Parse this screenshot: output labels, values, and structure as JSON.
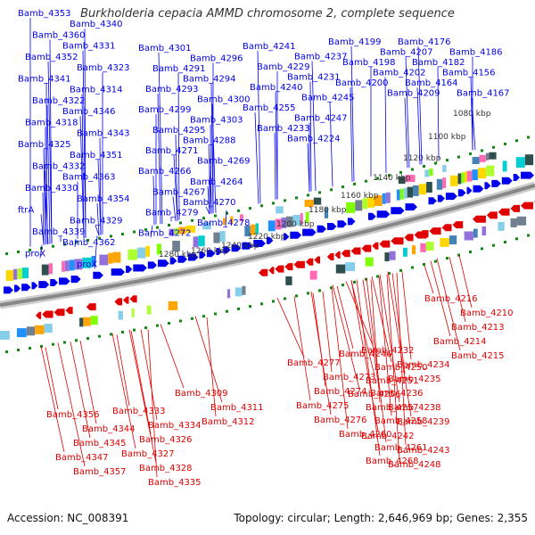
{
  "title": "Burkholderia cepacia AMMD chromosome 2, complete sequence",
  "footer": {
    "accession": "Accession: NC_008391",
    "summary": "Topology: circular; Length: 2,646,969 bp; Genes: 2,355"
  },
  "colors": {
    "forward_strand": "#0000ee",
    "reverse_strand": "#e00000",
    "backbone": "#888888",
    "tick_mark": "#118811"
  },
  "scale_labels": [
    "1080 kbp",
    "1100 kbp",
    "1120 kbp",
    "1140 kbp",
    "1160 kbp",
    "1180 kbp",
    "1200 kbp",
    "1220 kbp",
    "1240 kbp",
    "1260 kbp",
    "1280 kbp"
  ],
  "forward_genes": [
    "Bamb_4353",
    "Bamb_4340",
    "Bamb_4360",
    "Bamb_4331",
    "Bamb_4352",
    "Bamb_4323",
    "Bamb_4341",
    "Bamb_4314",
    "Bamb_4322",
    "Bamb_4346",
    "Bamb_4318",
    "Bamb_4343",
    "Bamb_4325",
    "Bamb_4351",
    "Bamb_4332",
    "Bamb_4363",
    "Bamb_4330",
    "Bamb_4354",
    "ftrA",
    "Bamb_4329",
    "Bamb_4339",
    "Bamb_4362",
    "proX",
    "proX",
    "Bamb_4301",
    "Bamb_4296",
    "Bamb_4291",
    "Bamb_4294",
    "Bamb_4293",
    "Bamb_4300",
    "Bamb_4299",
    "Bamb_4303",
    "Bamb_4295",
    "Bamb_4288",
    "Bamb_4271",
    "Bamb_4269",
    "Bamb_4266",
    "Bamb_4264",
    "Bamb_4267",
    "Bamb_4270",
    "Bamb_4279",
    "Bamb_4278",
    "Bamb_4272",
    "Bamb_4241",
    "Bamb_4237",
    "Bamb_4229",
    "Bamb_4231",
    "Bamb_4240",
    "Bamb_4245",
    "Bamb_4255",
    "Bamb_4247",
    "Bamb_4233",
    "Bamb_4224",
    "Bamb_4199",
    "Bamb_4207",
    "Bamb_4198",
    "Bamb_4202",
    "Bamb_4200",
    "Bamb_4209",
    "Bamb_4176",
    "Bamb_4186",
    "Bamb_4182",
    "Bamb_4156",
    "Bamb_4164",
    "Bamb_4167"
  ],
  "reverse_genes": [
    "Bamb_4216",
    "Bamb_4210",
    "Bamb_4213",
    "Bamb_4214",
    "Bamb_4215",
    "Bamb_4232",
    "Bamb_4234",
    "Bamb_4235",
    "Bamb_4236",
    "Bamb_4238",
    "Bamb_4239",
    "Bamb_4242",
    "Bamb_4243",
    "Bamb_4248",
    "Bamb_4246",
    "Bamb_4250",
    "Bamb_4251",
    "Bamb_4256",
    "Bamb_4257",
    "Bamb_4258",
    "Bamb_4260",
    "Bamb_4261",
    "Bamb_4268",
    "Bamb_4277",
    "Bamb_4273",
    "Bamb_4274",
    "Bamb_4275",
    "Bamb_4276",
    "Bamb_4309",
    "Bamb_4311",
    "Bamb_4312",
    "Bamb_4333",
    "Bamb_4334",
    "Bamb_4326",
    "Bamb_4327",
    "Bamb_4328",
    "Bamb_4335",
    "Bamb_4356",
    "Bamb_4344",
    "Bamb_4345",
    "Bamb_4347",
    "Bamb_4357"
  ]
}
